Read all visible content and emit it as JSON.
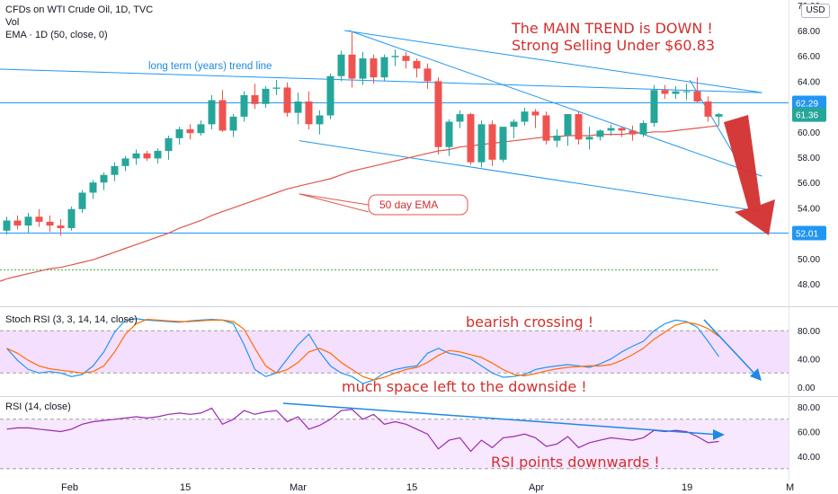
{
  "header": {
    "symbol": "CFDs on WTI Crude Oil, 1D, TVC",
    "vol": "Vol",
    "ema": "EMA · 1D (50, close, 0)",
    "currency": "USD"
  },
  "annotations": {
    "main_trend": "The MAIN TREND is DOWN !",
    "selling": "Strong Selling Under $60.83",
    "trendline": "long term (years) trend line",
    "ema_label": "50 day EMA",
    "bearish": "bearish crossing !",
    "space": "much space left to the downside !",
    "rsi_points": "RSI points downwards !"
  },
  "colors": {
    "up": "#26a69a",
    "down": "#ef5350",
    "ema": "#e0554f",
    "trendline": "#2196f3",
    "hline": "#2196f3",
    "annotation": "#d32f2f",
    "arrow": "#d32f2f",
    "stoch_k": "#2196f3",
    "stoch_d": "#ff6d00",
    "rsi": "#9c27b0",
    "band": "#e1bee7",
    "bg": "#ffffff"
  },
  "chart_data": [
    {
      "type": "candlestick",
      "title": "CFDs on WTI Crude Oil, 1D, TVC",
      "x_ticks": [
        "Feb",
        "15",
        "Mar",
        "15",
        "Apr",
        "19",
        "M"
      ],
      "y_ticks": [
        48,
        50,
        52,
        54,
        56,
        58,
        60,
        62,
        64,
        66,
        68,
        70
      ],
      "ylim": [
        47,
        70.5
      ],
      "price_labels": [
        {
          "text": "62.29",
          "value": 62.29,
          "color": "#2196f3"
        },
        {
          "text": "61.36",
          "value": 61.36,
          "color": "#26a69a"
        },
        {
          "text": "52.01",
          "value": 52.01,
          "color": "#2196f3"
        }
      ],
      "candles": [
        [
          52.2,
          53.3,
          51.9,
          53.0
        ],
        [
          53.0,
          53.4,
          52.3,
          52.6
        ],
        [
          52.6,
          53.6,
          52.0,
          53.3
        ],
        [
          53.3,
          53.9,
          52.5,
          52.9
        ],
        [
          52.9,
          53.4,
          52.1,
          52.6
        ],
        [
          52.6,
          53.1,
          51.8,
          52.4
        ],
        [
          52.4,
          54.1,
          52.2,
          53.9
        ],
        [
          53.9,
          55.4,
          53.6,
          55.2
        ],
        [
          55.2,
          56.2,
          54.7,
          56.0
        ],
        [
          56.0,
          56.8,
          55.4,
          56.6
        ],
        [
          56.6,
          57.6,
          56.1,
          57.3
        ],
        [
          57.3,
          58.1,
          56.9,
          57.9
        ],
        [
          57.9,
          58.6,
          57.4,
          58.3
        ],
        [
          58.3,
          58.5,
          57.7,
          57.9
        ],
        [
          57.9,
          58.7,
          57.5,
          58.5
        ],
        [
          58.5,
          59.7,
          57.8,
          59.5
        ],
        [
          59.5,
          60.4,
          59.0,
          60.2
        ],
        [
          60.2,
          60.6,
          59.4,
          59.9
        ],
        [
          59.9,
          60.9,
          59.7,
          60.6
        ],
        [
          60.6,
          62.9,
          60.2,
          62.5
        ],
        [
          62.5,
          63.3,
          60.0,
          60.1
        ],
        [
          60.1,
          61.4,
          59.6,
          61.2
        ],
        [
          61.2,
          63.2,
          60.8,
          62.9
        ],
        [
          62.9,
          63.8,
          61.8,
          62.2
        ],
        [
          62.2,
          63.6,
          61.9,
          63.4
        ],
        [
          63.4,
          64.1,
          62.9,
          63.5
        ],
        [
          63.5,
          63.9,
          61.2,
          61.5
        ],
        [
          61.5,
          63.1,
          60.6,
          62.4
        ],
        [
          62.4,
          63.2,
          60.2,
          60.6
        ],
        [
          60.6,
          61.7,
          59.8,
          61.3
        ],
        [
          61.3,
          64.6,
          61.0,
          64.4
        ],
        [
          64.4,
          66.4,
          64.0,
          66.1
        ],
        [
          66.1,
          67.9,
          63.5,
          64.2
        ],
        [
          64.2,
          66.3,
          63.7,
          65.8
        ],
        [
          65.8,
          66.1,
          63.8,
          64.3
        ],
        [
          64.3,
          66.1,
          64.0,
          65.9
        ],
        [
          65.9,
          66.5,
          65.2,
          66.0
        ],
        [
          66.0,
          66.3,
          65.0,
          65.6
        ],
        [
          65.6,
          65.8,
          64.3,
          65.0
        ],
        [
          65.0,
          65.4,
          63.4,
          64.0
        ],
        [
          64.0,
          64.3,
          58.2,
          58.8
        ],
        [
          58.8,
          61.0,
          58.1,
          60.8
        ],
        [
          60.8,
          61.7,
          60.3,
          61.4
        ],
        [
          61.4,
          61.5,
          57.4,
          57.6
        ],
        [
          57.6,
          60.9,
          57.2,
          60.6
        ],
        [
          60.6,
          60.9,
          57.3,
          57.8
        ],
        [
          57.8,
          60.2,
          57.6,
          60.4
        ],
        [
          60.4,
          61.0,
          59.5,
          60.8
        ],
        [
          60.8,
          61.9,
          60.5,
          61.6
        ],
        [
          61.6,
          61.8,
          60.3,
          61.3
        ],
        [
          61.3,
          61.6,
          59.0,
          59.3
        ],
        [
          59.3,
          60.2,
          58.8,
          59.7
        ],
        [
          59.7,
          61.4,
          58.9,
          61.4
        ],
        [
          61.4,
          61.6,
          59.0,
          59.4
        ],
        [
          59.4,
          60.4,
          58.6,
          59.6
        ],
        [
          59.6,
          60.2,
          59.3,
          60.1
        ],
        [
          60.1,
          60.6,
          59.7,
          60.3
        ],
        [
          60.3,
          60.4,
          59.6,
          60.1
        ],
        [
          60.1,
          60.5,
          59.3,
          59.8
        ],
        [
          59.8,
          60.9,
          59.6,
          60.7
        ],
        [
          60.7,
          63.7,
          60.4,
          63.3
        ],
        [
          63.3,
          63.7,
          62.6,
          63.0
        ],
        [
          63.0,
          63.6,
          62.6,
          63.2
        ],
        [
          63.2,
          63.8,
          62.5,
          63.2
        ],
        [
          63.2,
          64.3,
          62.3,
          62.4
        ],
        [
          62.4,
          62.8,
          60.8,
          61.2
        ],
        [
          61.2,
          61.5,
          60.5,
          61.4
        ]
      ],
      "ema50": [
        48.4,
        48.6,
        48.8,
        49.0,
        49.2,
        49.3,
        49.5,
        49.7,
        49.9,
        50.2,
        50.5,
        50.8,
        51.1,
        51.4,
        51.7,
        52.0,
        52.4,
        52.7,
        53.0,
        53.4,
        53.7,
        54.0,
        54.3,
        54.6,
        54.9,
        55.2,
        55.5,
        55.7,
        55.9,
        56.1,
        56.3,
        56.6,
        56.9,
        57.1,
        57.3,
        57.5,
        57.7,
        57.9,
        58.1,
        58.3,
        58.5,
        58.6,
        58.8,
        58.9,
        59.0,
        59.1,
        59.2,
        59.3,
        59.4,
        59.5,
        59.6,
        59.6,
        59.7,
        59.7,
        59.7,
        59.8,
        59.8,
        59.8,
        59.9,
        59.9,
        60.0,
        60.0,
        60.1,
        60.2,
        60.3,
        60.4,
        60.5
      ],
      "trend_lines": [
        {
          "name": "long term (years) trend line",
          "from": [
            -2.5,
            65.0
          ],
          "to": [
            70.0,
            63.1
          ]
        },
        {
          "name": "upper channel",
          "from": [
            31.3,
            68.0
          ],
          "to": [
            70.0,
            63.1
          ]
        },
        {
          "name": "lower channel",
          "from": [
            27.1,
            59.3
          ],
          "to": [
            70.0,
            53.7
          ]
        },
        {
          "name": "inner channel",
          "from": [
            31.7,
            68.0
          ],
          "to": [
            70.0,
            56.5
          ]
        },
        {
          "name": "short wedge line",
          "from": [
            63.3,
            64.1
          ],
          "to": [
            68.3,
            56.9
          ]
        }
      ],
      "horizontal_lines": [
        62.29,
        52.01
      ],
      "dashed_line": 49.1
    },
    {
      "type": "line",
      "title": "Stoch RSI (3, 3, 14, 14, close)",
      "y_ticks": [
        0.0,
        40.0,
        80.0
      ],
      "ylim": [
        -10,
        100
      ],
      "band": [
        20,
        80
      ],
      "k": [
        55,
        38,
        25,
        20,
        22,
        20,
        15,
        18,
        30,
        50,
        78,
        95,
        97,
        95,
        94,
        93,
        92,
        94,
        95,
        96,
        95,
        90,
        60,
        25,
        15,
        20,
        40,
        60,
        75,
        50,
        30,
        20,
        15,
        5,
        10,
        20,
        25,
        28,
        30,
        48,
        55,
        48,
        45,
        40,
        30,
        20,
        14,
        15,
        18,
        25,
        28,
        30,
        32,
        30,
        28,
        33,
        40,
        50,
        58,
        65,
        80,
        90,
        95,
        93,
        85,
        65,
        43
      ],
      "d": [
        55,
        48,
        38,
        30,
        26,
        24,
        22,
        20,
        22,
        30,
        50,
        75,
        90,
        96,
        95,
        94,
        93,
        93,
        94,
        95,
        95,
        93,
        82,
        55,
        30,
        20,
        25,
        35,
        50,
        55,
        48,
        35,
        25,
        15,
        10,
        14,
        20,
        25,
        28,
        35,
        45,
        52,
        50,
        46,
        42,
        34,
        25,
        18,
        16,
        19,
        23,
        26,
        28,
        29,
        30,
        30,
        32,
        38,
        46,
        55,
        68,
        78,
        88,
        92,
        89,
        83,
        72
      ]
    },
    {
      "type": "line",
      "title": "RSI (14, close)",
      "y_ticks": [
        40.0,
        60.0,
        80.0
      ],
      "ylim": [
        30,
        92
      ],
      "band": [
        30,
        70
      ],
      "rsi": [
        62,
        63,
        63,
        62,
        61,
        60,
        62,
        66,
        68,
        69,
        70,
        71,
        72,
        71,
        72,
        74,
        75,
        74,
        75,
        79,
        66,
        70,
        77,
        74,
        76,
        77,
        68,
        72,
        62,
        65,
        70,
        77,
        78,
        70,
        74,
        66,
        68,
        66,
        62,
        58,
        46,
        53,
        55,
        44,
        53,
        47,
        55,
        56,
        58,
        55,
        48,
        50,
        56,
        47,
        51,
        53,
        55,
        54,
        53,
        55,
        61,
        60,
        61,
        60,
        56,
        51,
        52
      ]
    }
  ]
}
